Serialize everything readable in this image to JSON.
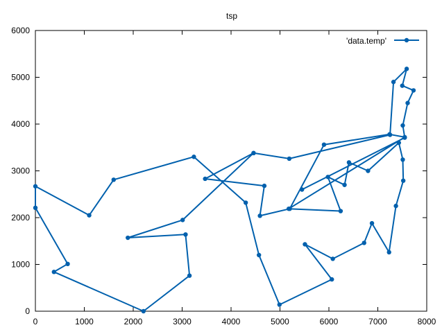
{
  "chart_data": {
    "type": "line",
    "title": "tsp",
    "xlabel": "",
    "ylabel": "",
    "xlim": [
      0,
      8000
    ],
    "ylim": [
      0,
      6000
    ],
    "xticks": [
      0,
      1000,
      2000,
      3000,
      4000,
      5000,
      6000,
      7000,
      8000
    ],
    "yticks": [
      0,
      1000,
      2000,
      3000,
      4000,
      5000,
      6000
    ],
    "grid": false,
    "legend_position": "top-right",
    "series": [
      {
        "name": "'data.temp'",
        "color": "#0060ad",
        "x": [
          5450,
          7550,
          7510,
          7610,
          7730,
          7500,
          7590,
          7320,
          7250,
          5190,
          4460,
          3470,
          4680,
          4590,
          5200,
          5900,
          7240,
          7550,
          5180,
          6240,
          5980,
          6320,
          6410,
          6800,
          7430,
          7510,
          7520,
          7370,
          7230,
          6880,
          6720,
          6080,
          5510,
          6060,
          4990,
          4570,
          4300,
          3240,
          1600,
          1100,
          0,
          0,
          660,
          380,
          2210,
          3150,
          3070,
          1890,
          3010,
          4460
        ],
        "y": [
          2600,
          3710,
          3970,
          4450,
          4720,
          4820,
          5180,
          4900,
          3770,
          3260,
          3380,
          2830,
          2680,
          2040,
          2190,
          3560,
          3780,
          3720,
          2190,
          2140,
          2870,
          2700,
          3180,
          3000,
          3600,
          3240,
          2790,
          2250,
          1260,
          1880,
          1460,
          1120,
          1430,
          680,
          140,
          1200,
          2320,
          3300,
          2810,
          2050,
          2670,
          2210,
          1010,
          840,
          0,
          760,
          1640,
          1570,
          1950,
          3380
        ]
      }
    ]
  }
}
